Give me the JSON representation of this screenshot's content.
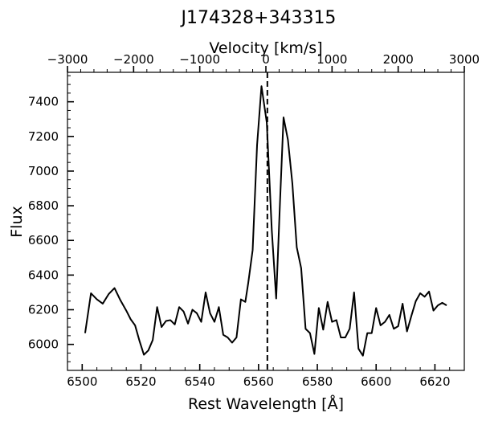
{
  "chart_data": {
    "type": "line",
    "title": "J174328+343315",
    "xlabel": "Rest Wavelength [Å]",
    "ylabel": "Flux",
    "top_xlabel": "Velocity [km/s]",
    "xlim": [
      6495,
      6630
    ],
    "ylim": [
      5850,
      7570
    ],
    "top_xlim": [
      -3000,
      3000
    ],
    "x_ticks": [
      6500,
      6520,
      6540,
      6560,
      6580,
      6600,
      6620
    ],
    "x_tick_labels": [
      "6500",
      "6520",
      "6540",
      "6560",
      "6580",
      "6600",
      "6620"
    ],
    "y_ticks": [
      6000,
      6200,
      6400,
      6600,
      6800,
      7000,
      7200,
      7400
    ],
    "y_tick_labels": [
      "6000",
      "6200",
      "6400",
      "6600",
      "6800",
      "7000",
      "7200",
      "7400"
    ],
    "top_ticks": [
      -3000,
      -2000,
      -1000,
      0,
      1000,
      2000,
      3000
    ],
    "top_tick_labels": [
      "−3000",
      "−2000",
      "−1000",
      "0",
      "1000",
      "2000",
      "3000"
    ],
    "reference_line": {
      "x": 6563,
      "style": "dashed"
    },
    "line_color": "#000000",
    "grid": false,
    "series": [
      {
        "x": [
          6501,
          6503,
          6505,
          6507,
          6509,
          6511,
          6513,
          6515,
          6516.5,
          6518,
          6519.5,
          6521,
          6522.5,
          6524,
          6525.5,
          6527,
          6528.5,
          6530,
          6531.5,
          6533,
          6534.5,
          6536,
          6537.5,
          6539,
          6540.5,
          6542,
          6543.5,
          6545,
          6546.5,
          6548,
          6549.5,
          6551,
          6552.5,
          6554,
          6555.5,
          6556.5,
          6558,
          6559.5,
          6561,
          6562.8,
          6564.5,
          6566,
          6567.3,
          6568.5,
          6570,
          6571.5,
          6573,
          6574.5,
          6576,
          6577.5,
          6579,
          6580.5,
          6582,
          6583.5,
          6585,
          6586.5,
          6588,
          6589.5,
          6591,
          6592.5,
          6594,
          6595.5,
          6597,
          6598.5,
          6600,
          6601.5,
          6603,
          6604.5,
          6606,
          6607.5,
          6609,
          6610.5,
          6612,
          6613.5,
          6615,
          6616.5,
          6618,
          6619.5,
          6621,
          6622.5,
          6624
        ],
        "y": [
          6065,
          6295,
          6260,
          6235,
          6290,
          6325,
          6255,
          6195,
          6145,
          6110,
          6020,
          5940,
          5965,
          6025,
          6215,
          6100,
          6135,
          6140,
          6115,
          6215,
          6190,
          6120,
          6200,
          6180,
          6130,
          6300,
          6180,
          6130,
          6215,
          6055,
          6040,
          6010,
          6040,
          6260,
          6245,
          6355,
          6545,
          7150,
          7490,
          7280,
          6660,
          6265,
          6820,
          7310,
          7180,
          6930,
          6560,
          6440,
          6090,
          6065,
          5945,
          6210,
          6085,
          6245,
          6130,
          6140,
          6040,
          6040,
          6090,
          6300,
          5975,
          5935,
          6065,
          6065,
          6210,
          6110,
          6130,
          6170,
          6090,
          6105,
          6235,
          6075,
          6165,
          6250,
          6295,
          6275,
          6305,
          6195,
          6225,
          6240,
          6225
        ]
      }
    ]
  }
}
